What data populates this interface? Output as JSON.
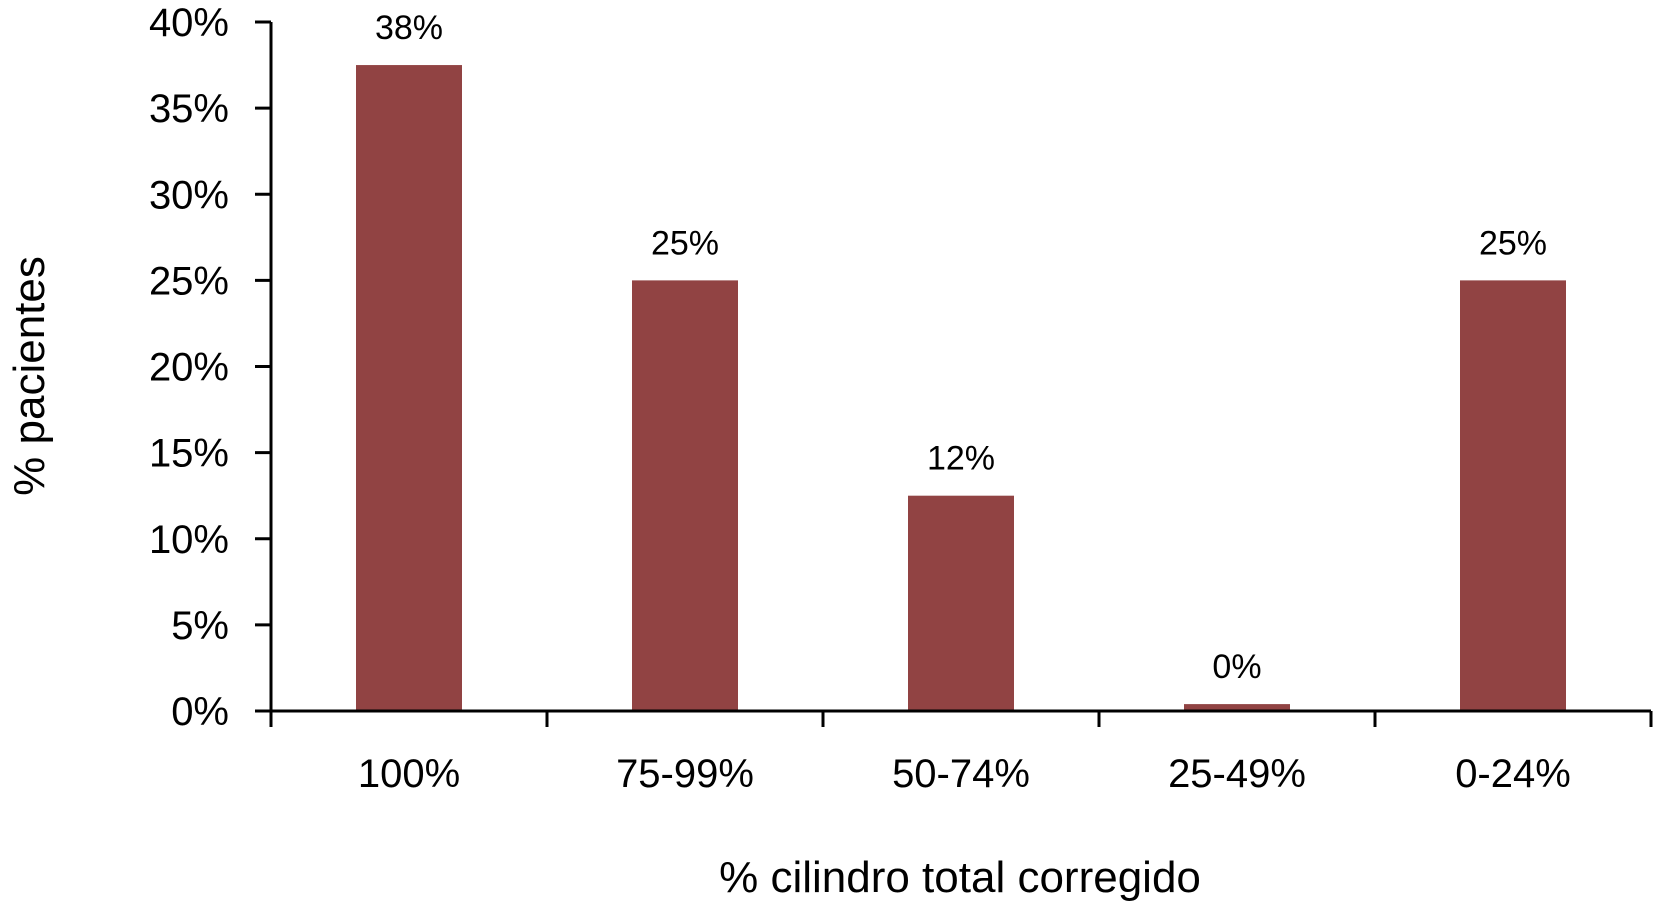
{
  "chart_data": {
    "type": "bar",
    "categories": [
      "100%",
      "75-99%",
      "50-74%",
      "25-49%",
      "0-24%"
    ],
    "values": [
      37.5,
      25,
      12.5,
      0.4,
      25
    ],
    "data_labels": [
      "38%",
      "25%",
      "12%",
      "0%",
      "25%"
    ],
    "title": "",
    "xlabel": "% cilindro total corregido",
    "ylabel": "% pacientes",
    "ylim": [
      0,
      40
    ],
    "yticks": [
      "0%",
      "5%",
      "10%",
      "15%",
      "20%",
      "25%",
      "30%",
      "35%",
      "40%"
    ],
    "grid": false,
    "legend": "none",
    "bar_color": "#914343",
    "axis_color": "#000000"
  }
}
